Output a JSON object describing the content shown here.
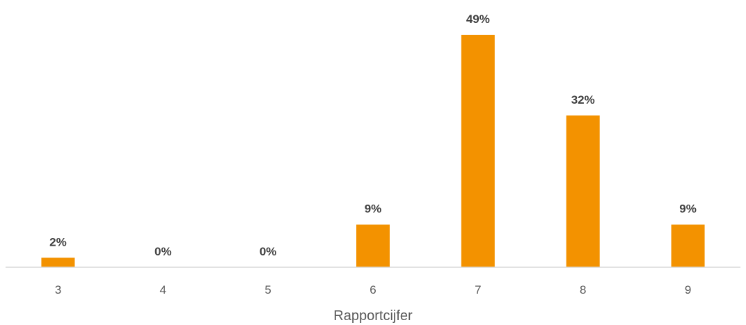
{
  "chart_data": {
    "type": "bar",
    "title": "",
    "xlabel": "Rapportcijfer",
    "ylabel": "",
    "categories": [
      "3",
      "4",
      "5",
      "6",
      "7",
      "8",
      "9"
    ],
    "values": [
      2,
      0,
      0,
      9,
      49,
      32,
      9
    ],
    "value_labels": [
      "2%",
      "0%",
      "0%",
      "9%",
      "49%",
      "32%",
      "9%"
    ],
    "unit": "%",
    "ylim": [
      0,
      49
    ],
    "grid": false,
    "legend": "none",
    "bar_color": "#F39200"
  }
}
